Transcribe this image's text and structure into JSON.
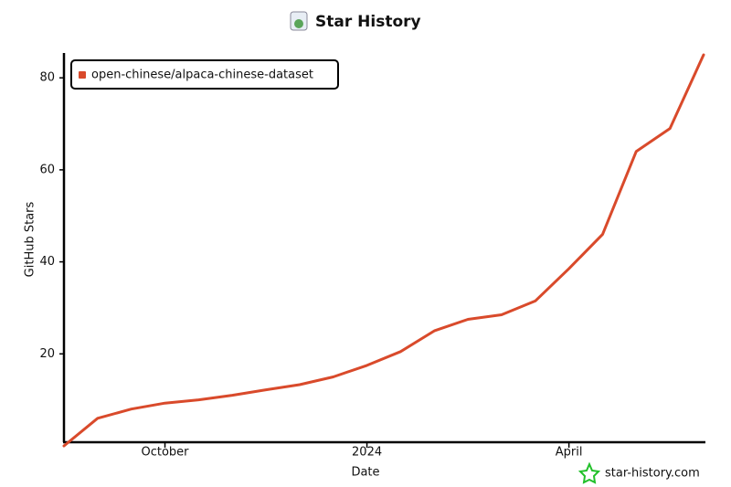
{
  "chart_data": {
    "type": "line",
    "title": "Star History",
    "x_label": "Date",
    "y_label": "GitHub Stars",
    "categories": [
      null,
      null,
      null,
      "October",
      null,
      null,
      null,
      null,
      null,
      "2024",
      null,
      null,
      null,
      null,
      null,
      "April",
      null,
      null,
      null,
      null
    ],
    "series": [
      {
        "name": "open-chinese/alpaca-chinese-dataset",
        "color": "#d94a2b",
        "values": [
          0,
          6,
          8,
          9.3,
          10,
          11,
          12.2,
          13.3,
          15,
          17.5,
          20.5,
          25,
          27.5,
          28.5,
          31.5,
          38.5,
          46,
          64,
          69,
          85
        ]
      }
    ],
    "ylim": [
      0,
      85
    ],
    "yticks": [
      20,
      40,
      60,
      80
    ],
    "legend": "upper left",
    "watermark": "star-history.com"
  }
}
